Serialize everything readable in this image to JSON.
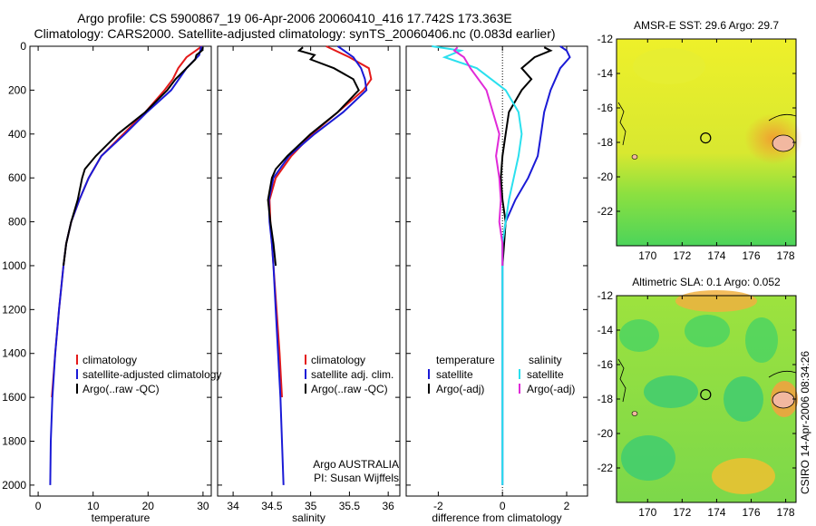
{
  "header": {
    "title_line1": "Argo profile: CS 5900867_19 06-Apr-2006 20060410_416 17.742S 173.363E",
    "title_line2": "Climatology: CARS2000. Satellite-adjusted climatology: synTS_20060406.nc (0.083d earlier)"
  },
  "side_label": "CSIRO 14-Apr-2006 08:34:26",
  "colors": {
    "red": "#e41a1a",
    "blue": "#1a1ad6",
    "black": "#000000",
    "cyan": "#2ae0ee",
    "magenta": "#e02ad8"
  },
  "chart_data": [
    {
      "type": "line",
      "id": "temperature",
      "xlabel": "temperature",
      "xlim": [
        -1.5,
        31.5
      ],
      "ylim": [
        2050,
        0
      ],
      "xticks": [
        0,
        10,
        20,
        30
      ],
      "yticks": [
        0,
        200,
        400,
        600,
        800,
        1000,
        1200,
        1400,
        1600,
        1800,
        2000
      ],
      "legend": [
        "climatology",
        "satellite-adjusted climatology",
        "Argo(..raw -QC)"
      ],
      "series": [
        {
          "name": "climatology",
          "color": "red",
          "depth": [
            0,
            20,
            50,
            100,
            150,
            200,
            300,
            400,
            500,
            600,
            700,
            800,
            900,
            1000,
            1200,
            1400,
            1600
          ],
          "values": [
            29.8,
            28.7,
            27,
            25.5,
            24.5,
            23,
            19.5,
            15.5,
            11.5,
            9.2,
            7.5,
            6,
            5.1,
            4.6,
            3.8,
            3.1,
            2.5
          ]
        },
        {
          "name": "satellite-adjusted climatology",
          "color": "blue",
          "depth": [
            0,
            20,
            40,
            100,
            200,
            300,
            400,
            500,
            600,
            700,
            800,
            900,
            1000,
            1200,
            1400,
            1600,
            1800,
            2000
          ],
          "values": [
            29.7,
            29.5,
            29.3,
            27,
            24.2,
            19.8,
            15.8,
            11.5,
            9.2,
            7.5,
            6,
            5.1,
            4.6,
            3.8,
            3.1,
            2.6,
            2.3,
            2.2
          ]
        },
        {
          "name": "Argo(..raw -QC)",
          "color": "black",
          "depth": [
            5,
            20,
            40,
            60,
            100,
            150,
            200,
            300,
            400,
            450,
            500,
            560,
            600,
            700,
            800,
            900,
            1000
          ],
          "values": [
            30,
            29.8,
            28.8,
            28.6,
            27,
            25,
            23.5,
            19.5,
            14.5,
            12.5,
            10.5,
            8.5,
            8,
            7.2,
            6,
            5.1,
            4.6
          ]
        }
      ]
    },
    {
      "type": "line",
      "id": "salinity",
      "xlabel": "salinity",
      "xlim": [
        33.8,
        36.15
      ],
      "ylim": [
        2050,
        0
      ],
      "xticks": [
        34,
        34.5,
        35,
        35.5,
        36
      ],
      "yticks": [
        0,
        200,
        400,
        600,
        800,
        1000,
        1200,
        1400,
        1600,
        1800,
        2000
      ],
      "legend": [
        "climatology",
        "satellite adj. clim.",
        "Argo(..raw -QC)"
      ],
      "annotation": [
        "Argo AUSTRALIA",
        "PI: Susan Wijffels"
      ],
      "series": [
        {
          "name": "climatology",
          "color": "red",
          "depth": [
            0,
            50,
            100,
            150,
            200,
            300,
            400,
            500,
            600,
            700,
            800,
            900,
            1000,
            1200,
            1400,
            1600
          ],
          "values": [
            35.2,
            35.5,
            35.75,
            35.78,
            35.68,
            35.35,
            35.02,
            34.75,
            34.55,
            34.47,
            34.48,
            34.5,
            34.52,
            34.56,
            34.6,
            34.63
          ]
        },
        {
          "name": "satellite adj. clim.",
          "color": "blue",
          "depth": [
            0,
            50,
            100,
            150,
            200,
            300,
            400,
            500,
            600,
            700,
            800,
            900,
            1000,
            1200,
            1400,
            1600,
            1800,
            2000
          ],
          "values": [
            35.35,
            35.55,
            35.65,
            35.7,
            35.72,
            35.42,
            35.05,
            34.72,
            34.52,
            34.46,
            34.47,
            34.5,
            34.52,
            34.55,
            34.58,
            34.61,
            34.63,
            34.65
          ]
        },
        {
          "name": "Argo(..raw -QC)",
          "color": "black",
          "depth": [
            5,
            20,
            40,
            60,
            100,
            150,
            200,
            300,
            400,
            500,
            560,
            600,
            700,
            800,
            900,
            1000
          ],
          "values": [
            34.9,
            34.85,
            35.05,
            35.0,
            35.3,
            35.55,
            35.62,
            35.35,
            35.0,
            34.7,
            34.55,
            34.5,
            34.45,
            34.48,
            34.52,
            34.55
          ]
        }
      ]
    },
    {
      "type": "line",
      "id": "difference",
      "xlabel": "difference from climatology",
      "xlim": [
        -3.0,
        2.65
      ],
      "ylim": [
        2050,
        0
      ],
      "xticks": [
        -2,
        0,
        2
      ],
      "yticks": [
        0,
        200,
        400,
        600,
        800,
        1000,
        1200,
        1400,
        1600,
        1800,
        2000
      ],
      "legend_left_title": "temperature",
      "legend_right_title": "salinity",
      "legend": [
        "satellite",
        "Argo(-adj)",
        "satellite",
        "Argo(-adj)"
      ],
      "series": [
        {
          "name": "temperature satellite",
          "color": "blue",
          "depth": [
            0,
            20,
            50,
            100,
            200,
            300,
            400,
            500,
            600,
            700,
            800,
            900,
            1000,
            1200,
            1600,
            2000
          ],
          "values": [
            1.8,
            2.0,
            2.1,
            1.8,
            1.5,
            1.3,
            1.2,
            1.1,
            0.8,
            0.4,
            0.1,
            0.0,
            0.0,
            0.0,
            0.0,
            0.0
          ]
        },
        {
          "name": "temperature Argo(-adj)",
          "color": "black",
          "depth": [
            5,
            20,
            50,
            100,
            150,
            200,
            300,
            400,
            500,
            600,
            700,
            800,
            900,
            1000
          ],
          "values": [
            1.3,
            1.5,
            1.0,
            0.6,
            0.9,
            0.6,
            0.2,
            0.1,
            0.0,
            -0.05,
            0.0,
            0.1,
            0.05,
            0.0
          ]
        },
        {
          "name": "salinity satellite",
          "color": "cyan",
          "depth": [
            0,
            20,
            50,
            100,
            200,
            300,
            400,
            500,
            600,
            700,
            800,
            900,
            1000,
            1200,
            1600,
            2000
          ],
          "values": [
            -2.2,
            -1.3,
            -1.8,
            -0.8,
            0.1,
            0.5,
            0.6,
            0.5,
            0.35,
            0.2,
            0.1,
            0.0,
            0.0,
            0.0,
            0.0,
            0.0
          ]
        },
        {
          "name": "salinity Argo(-adj)",
          "color": "magenta",
          "depth": [
            5,
            20,
            50,
            100,
            200,
            300,
            400,
            500,
            600,
            700,
            800,
            900,
            1000
          ],
          "values": [
            -1.4,
            -1.5,
            -1.2,
            -1.0,
            -0.5,
            -0.3,
            -0.1,
            -0.2,
            -0.1,
            -0.05,
            -0.1,
            0.0,
            0.0
          ]
        }
      ]
    },
    {
      "type": "heatmap",
      "id": "sst",
      "title": "AMSR-E SST: 29.6 Argo: 29.7",
      "xlim": [
        168.2,
        178.6
      ],
      "ylim": [
        -12,
        -24
      ],
      "xticks": [
        170,
        172,
        174,
        176,
        178
      ],
      "yticks": [
        -12,
        -14,
        -16,
        -18,
        -20,
        -22
      ],
      "marker": [
        173.363,
        -17.742
      ]
    },
    {
      "type": "heatmap",
      "id": "sla",
      "title": "Altimetric SLA: 0.1 Argo: 0.052",
      "xlim": [
        168.2,
        178.6
      ],
      "ylim": [
        -12,
        -24
      ],
      "xticks": [
        170,
        172,
        174,
        176,
        178
      ],
      "yticks": [
        -12,
        -14,
        -16,
        -18,
        -20,
        -22
      ],
      "marker": [
        173.363,
        -17.742
      ]
    }
  ]
}
